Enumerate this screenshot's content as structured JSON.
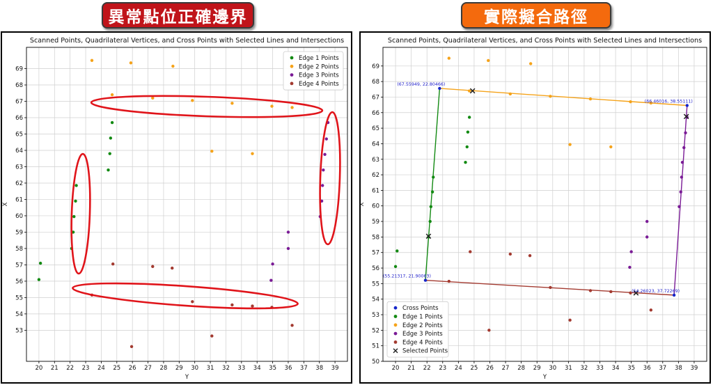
{
  "banners": {
    "left": "異常點位正確邊界",
    "right": "實際擬合路徑"
  },
  "colors": {
    "edge1": "#138a13",
    "edge2": "#f5a31a",
    "edge3": "#7a1b96",
    "edge4": "#a33a30",
    "cross": "#1525c9",
    "selected": "#222222",
    "highlight": "#e0141a",
    "left_banner": "#c0141a",
    "right_banner": "#f46a0d",
    "grid": "#cfcfcf"
  },
  "chart_data": [
    {
      "type": "scatter",
      "title": "Scanned Points, Quadrilateral Vertices, and Cross Points with Selected Lines and Intersections",
      "xlabel": "Y",
      "ylabel": "X",
      "xlim": [
        19.2,
        39.8
      ],
      "ylim": [
        51.1,
        70.3
      ],
      "xticks": [
        20,
        21,
        22,
        23,
        24,
        25,
        26,
        27,
        28,
        29,
        30,
        31,
        32,
        33,
        34,
        35,
        36,
        37,
        38,
        39
      ],
      "yticks": [
        53,
        54,
        55,
        56,
        57,
        58,
        59,
        60,
        61,
        62,
        63,
        64,
        65,
        66,
        67,
        68,
        69
      ],
      "grid": true,
      "legend_position": "top-right",
      "series": [
        {
          "name": "Edge 1 Points",
          "color_key": "edge1",
          "points": [
            [
              20,
              56.1
            ],
            [
              20.1,
              57.1
            ],
            [
              22.1,
              58.0
            ],
            [
              22.2,
              59.0
            ],
            [
              22.25,
              59.95
            ],
            [
              22.35,
              60.9
            ],
            [
              22.4,
              61.85
            ],
            [
              24.45,
              62.8
            ],
            [
              24.55,
              63.8
            ],
            [
              24.6,
              64.75
            ],
            [
              24.7,
              65.7
            ]
          ]
        },
        {
          "name": "Edge 2 Points",
          "color_key": "edge2",
          "points": [
            [
              23.4,
              69.5
            ],
            [
              25.9,
              69.35
            ],
            [
              28.6,
              69.15
            ],
            [
              24.7,
              67.4
            ],
            [
              27.3,
              67.2
            ],
            [
              29.85,
              67.05
            ],
            [
              32.4,
              66.88
            ],
            [
              34.95,
              66.7
            ],
            [
              36.25,
              66.62
            ],
            [
              31.1,
              63.95
            ],
            [
              33.7,
              63.8
            ]
          ]
        },
        {
          "name": "Edge 3 Points",
          "color_key": "edge3",
          "points": [
            [
              34.9,
              56.05
            ],
            [
              35.0,
              57.05
            ],
            [
              36.0,
              58.0
            ],
            [
              36.0,
              59.0
            ],
            [
              38.05,
              59.95
            ],
            [
              38.15,
              60.9
            ],
            [
              38.2,
              61.85
            ],
            [
              38.25,
              62.8
            ],
            [
              38.35,
              63.75
            ],
            [
              38.45,
              64.7
            ],
            [
              38.55,
              65.7
            ]
          ]
        },
        {
          "name": "Edge 4 Points",
          "color_key": "edge4",
          "points": [
            [
              23.4,
              55.15
            ],
            [
              24.75,
              57.05
            ],
            [
              27.3,
              56.9
            ],
            [
              28.55,
              56.8
            ],
            [
              29.85,
              54.75
            ],
            [
              31.1,
              52.65
            ],
            [
              32.4,
              54.55
            ],
            [
              33.7,
              54.48
            ],
            [
              34.95,
              54.4
            ],
            [
              36.25,
              53.3
            ],
            [
              25.95,
              52.0
            ]
          ]
        }
      ],
      "highlight_ellipses": 4
    },
    {
      "type": "scatter",
      "title": "Scanned Points, Quadrilateral Vertices, and Cross Points with Selected Lines and Intersections",
      "xlabel": "Y",
      "ylabel": "X",
      "xlim": [
        19.2,
        39.8
      ],
      "ylim": [
        50,
        70.2
      ],
      "xticks": [
        20,
        21,
        22,
        23,
        24,
        25,
        26,
        27,
        28,
        29,
        30,
        31,
        32,
        33,
        34,
        35,
        36,
        37,
        38,
        39
      ],
      "yticks": [
        50,
        51,
        52,
        53,
        54,
        55,
        56,
        57,
        58,
        59,
        60,
        61,
        62,
        63,
        64,
        65,
        66,
        67,
        68,
        69
      ],
      "grid": true,
      "legend_position": "bottom-left",
      "series": [
        {
          "name": "Cross Points",
          "color_key": "cross",
          "points": [
            [
              22.80466,
              67.55949
            ],
            [
              38.55111,
              66.46016
            ],
            [
              21.90063,
              55.21317
            ],
            [
              37.72269,
              54.26023
            ]
          ]
        },
        {
          "name": "Edge 1 Points",
          "color_key": "edge1",
          "points": [
            [
              20,
              56.1
            ],
            [
              20.1,
              57.1
            ],
            [
              22.1,
              58.0
            ],
            [
              22.2,
              59.0
            ],
            [
              22.25,
              59.95
            ],
            [
              22.35,
              60.9
            ],
            [
              22.4,
              61.85
            ],
            [
              24.45,
              62.8
            ],
            [
              24.55,
              63.8
            ],
            [
              24.6,
              64.75
            ],
            [
              24.7,
              65.7
            ]
          ]
        },
        {
          "name": "Edge 2 Points",
          "color_key": "edge2",
          "points": [
            [
              23.4,
              69.5
            ],
            [
              25.9,
              69.35
            ],
            [
              28.6,
              69.15
            ],
            [
              24.7,
              67.4
            ],
            [
              27.3,
              67.2
            ],
            [
              29.85,
              67.05
            ],
            [
              32.4,
              66.88
            ],
            [
              34.95,
              66.7
            ],
            [
              36.25,
              66.62
            ],
            [
              31.1,
              63.95
            ],
            [
              33.7,
              63.8
            ]
          ]
        },
        {
          "name": "Edge 3 Points",
          "color_key": "edge3",
          "points": [
            [
              34.9,
              56.05
            ],
            [
              35.0,
              57.05
            ],
            [
              36.0,
              58.0
            ],
            [
              36.0,
              59.0
            ],
            [
              38.05,
              59.95
            ],
            [
              38.15,
              60.9
            ],
            [
              38.2,
              61.85
            ],
            [
              38.25,
              62.8
            ],
            [
              38.35,
              63.75
            ],
            [
              38.45,
              64.7
            ],
            [
              38.55,
              65.7
            ]
          ]
        },
        {
          "name": "Edge 4 Points",
          "color_key": "edge4",
          "points": [
            [
              23.4,
              55.15
            ],
            [
              24.75,
              57.05
            ],
            [
              27.3,
              56.9
            ],
            [
              28.55,
              56.8
            ],
            [
              29.85,
              54.75
            ],
            [
              31.1,
              52.65
            ],
            [
              32.4,
              54.55
            ],
            [
              33.7,
              54.48
            ],
            [
              34.95,
              54.4
            ],
            [
              36.25,
              53.3
            ],
            [
              25.95,
              52.0
            ]
          ]
        },
        {
          "name": "Selected Points",
          "color_key": "selected",
          "marker": "x",
          "points": [
            [
              24.9,
              67.4
            ],
            [
              22.1,
              58.05
            ],
            [
              38.5,
              65.75
            ],
            [
              35.3,
              54.4
            ]
          ]
        }
      ],
      "lines": [
        {
          "color_key": "edge2",
          "from": [
            22.80466,
            67.55949
          ],
          "to": [
            38.55111,
            66.46016
          ]
        },
        {
          "color_key": "edge1",
          "from": [
            22.80466,
            67.55949
          ],
          "to": [
            21.90063,
            55.21317
          ]
        },
        {
          "color_key": "edge3",
          "from": [
            38.55111,
            66.46016
          ],
          "to": [
            37.72269,
            54.26023
          ]
        },
        {
          "color_key": "edge4",
          "from": [
            21.90063,
            55.21317
          ],
          "to": [
            37.72269,
            54.26023
          ]
        }
      ],
      "annotations": [
        {
          "text": "(67.55949, 22.80466)",
          "at": [
            22.80466,
            67.55949
          ],
          "anchor": "end"
        },
        {
          "text": "(66.46016, 38.55111)",
          "at": [
            38.55111,
            66.46016
          ],
          "anchor": "end"
        },
        {
          "text": "(55.21317, 21.90063)",
          "at": [
            21.90063,
            55.21317
          ],
          "anchor": "end"
        },
        {
          "text": "(54.26023, 37.72269)",
          "at": [
            37.72269,
            54.26023
          ],
          "anchor": "end"
        }
      ]
    }
  ]
}
